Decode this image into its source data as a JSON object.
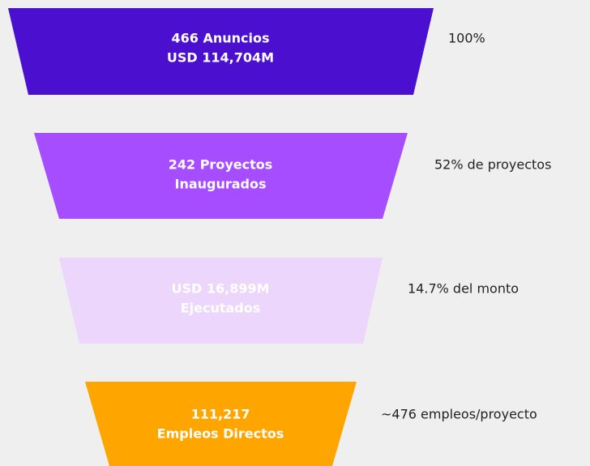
{
  "stages": [
    {
      "lines": [
        "466 Anuncios",
        "USD 114,704M"
      ],
      "note": "100%"
    },
    {
      "lines": [
        "242 Proyectos",
        "Inaugurados"
      ],
      "note": "52% de proyectos"
    },
    {
      "lines": [
        "USD 16,899M",
        "Ejecutados"
      ],
      "note": "14.7% del monto"
    },
    {
      "lines": [
        "111,217",
        "Empleos Directos"
      ],
      "note": "~476 empleos/proyecto"
    }
  ]
}
